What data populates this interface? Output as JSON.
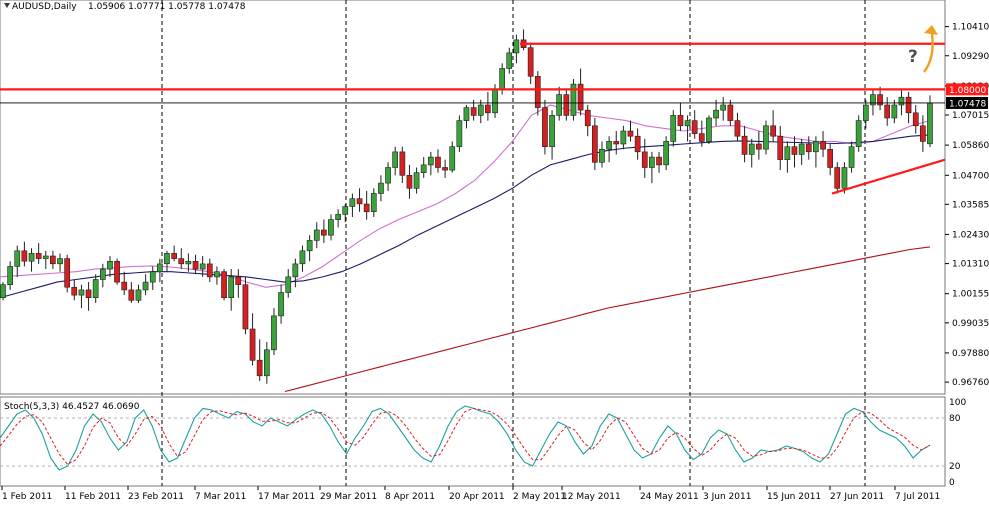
{
  "header": {
    "symbol": "AUDUSD,Daily",
    "ohlc": "1.05906 1.07771 1.05778 1.07478"
  },
  "stoch_header": "Stoch(5,3,3) 46.4527 46.0690",
  "annotation": {
    "question_mark": "?"
  },
  "colors": {
    "bull": "#3aa23a",
    "bear": "#d42020",
    "ma_fast": "#d070d0",
    "ma_mid": "#1a1a6a",
    "ma_slow": "#b01010",
    "stoch_main": "#20a0a0",
    "stoch_signal": "#e02020",
    "resistance": "#ff1a1a",
    "arrow": "#f0a020",
    "grid": "#000000",
    "frame": "#7a7a7a"
  },
  "chart_data": {
    "type": "candlestick",
    "instrument": "AUDUSD",
    "timeframe": "Daily",
    "price_axis": {
      "ylim": [
        0.9638,
        1.1097
      ],
      "ticks": [
        "1.10410",
        "1.09290",
        "1.08130",
        "1.07015",
        "1.05860",
        "1.04700",
        "1.03585",
        "1.02430",
        "1.01310",
        "1.00155",
        "0.99035",
        "0.97880",
        "0.96760"
      ],
      "tick_values": [
        1.1041,
        1.0929,
        1.0813,
        1.07015,
        1.0586,
        1.047,
        1.03585,
        1.0243,
        1.0131,
        1.00155,
        0.99035,
        0.9788,
        0.9676
      ]
    },
    "current_price_label": "1.07478",
    "resistance_label": "1.08000",
    "dates": [
      "1 Feb 2011",
      "11 Feb 2011",
      "23 Feb 2011",
      "7 Mar 2011",
      "17 Mar 2011",
      "29 Mar 2011",
      "8 Apr 2011",
      "20 Apr 2011",
      "2 May 2011",
      "12 May 2011",
      "24 May 2011",
      "3 Jun 2011",
      "15 Jun 2011",
      "27 Jun 2011",
      "7 Jul 2011"
    ],
    "candles": [
      {
        "o": 1.0,
        "h": 1.006,
        "l": 0.999,
        "c": 1.005
      },
      {
        "o": 1.005,
        "h": 1.014,
        "l": 1.003,
        "c": 1.012
      },
      {
        "o": 1.012,
        "h": 1.02,
        "l": 1.008,
        "c": 1.018
      },
      {
        "o": 1.018,
        "h": 1.0215,
        "l": 1.012,
        "c": 1.014
      },
      {
        "o": 1.014,
        "h": 1.019,
        "l": 1.01,
        "c": 1.017
      },
      {
        "o": 1.017,
        "h": 1.021,
        "l": 1.013,
        "c": 1.015
      },
      {
        "o": 1.015,
        "h": 1.018,
        "l": 1.011,
        "c": 1.016
      },
      {
        "o": 1.016,
        "h": 1.018,
        "l": 1.011,
        "c": 1.013
      },
      {
        "o": 1.013,
        "h": 1.017,
        "l": 1.01,
        "c": 1.015
      },
      {
        "o": 1.015,
        "h": 1.0165,
        "l": 1.002,
        "c": 1.004
      },
      {
        "o": 1.004,
        "h": 1.007,
        "l": 0.999,
        "c": 1.001
      },
      {
        "o": 1.001,
        "h": 1.005,
        "l": 0.996,
        "c": 1.003
      },
      {
        "o": 1.003,
        "h": 1.006,
        "l": 0.995,
        "c": 1.0
      },
      {
        "o": 1.0,
        "h": 1.009,
        "l": 0.998,
        "c": 1.007
      },
      {
        "o": 1.007,
        "h": 1.013,
        "l": 1.004,
        "c": 1.011
      },
      {
        "o": 1.011,
        "h": 1.016,
        "l": 1.008,
        "c": 1.014
      },
      {
        "o": 1.014,
        "h": 1.015,
        "l": 1.005,
        "c": 1.006
      },
      {
        "o": 1.006,
        "h": 1.01,
        "l": 1.001,
        "c": 1.003
      },
      {
        "o": 1.003,
        "h": 1.006,
        "l": 0.998,
        "c": 0.999
      },
      {
        "o": 0.999,
        "h": 1.005,
        "l": 0.998,
        "c": 1.003
      },
      {
        "o": 1.003,
        "h": 1.009,
        "l": 1.001,
        "c": 1.006
      },
      {
        "o": 1.006,
        "h": 1.012,
        "l": 1.003,
        "c": 1.01
      },
      {
        "o": 1.01,
        "h": 1.015,
        "l": 1.006,
        "c": 1.013
      },
      {
        "o": 1.013,
        "h": 1.018,
        "l": 1.01,
        "c": 1.017
      },
      {
        "o": 1.017,
        "h": 1.02,
        "l": 1.014,
        "c": 1.015
      },
      {
        "o": 1.015,
        "h": 1.019,
        "l": 1.011,
        "c": 1.013
      },
      {
        "o": 1.013,
        "h": 1.017,
        "l": 1.01,
        "c": 1.014
      },
      {
        "o": 1.014,
        "h": 1.0165,
        "l": 1.009,
        "c": 1.011
      },
      {
        "o": 1.011,
        "h": 1.016,
        "l": 1.008,
        "c": 1.013
      },
      {
        "o": 1.013,
        "h": 1.015,
        "l": 1.006,
        "c": 1.008
      },
      {
        "o": 1.008,
        "h": 1.012,
        "l": 1.005,
        "c": 1.01
      },
      {
        "o": 1.01,
        "h": 1.011,
        "l": 0.999,
        "c": 1.0
      },
      {
        "o": 1.0,
        "h": 1.011,
        "l": 0.995,
        "c": 1.008
      },
      {
        "o": 1.008,
        "h": 1.011,
        "l": 1.0,
        "c": 1.005
      },
      {
        "o": 1.005,
        "h": 1.008,
        "l": 0.986,
        "c": 0.988
      },
      {
        "o": 0.988,
        "h": 0.994,
        "l": 0.974,
        "c": 0.976
      },
      {
        "o": 0.976,
        "h": 0.984,
        "l": 0.968,
        "c": 0.97
      },
      {
        "o": 0.97,
        "h": 0.983,
        "l": 0.967,
        "c": 0.98
      },
      {
        "o": 0.98,
        "h": 0.996,
        "l": 0.978,
        "c": 0.993
      },
      {
        "o": 0.993,
        "h": 1.005,
        "l": 0.99,
        "c": 1.002
      },
      {
        "o": 1.002,
        "h": 1.011,
        "l": 1.0,
        "c": 1.008
      },
      {
        "o": 1.008,
        "h": 1.015,
        "l": 1.004,
        "c": 1.013
      },
      {
        "o": 1.013,
        "h": 1.02,
        "l": 1.01,
        "c": 1.018
      },
      {
        "o": 1.018,
        "h": 1.024,
        "l": 1.014,
        "c": 1.022
      },
      {
        "o": 1.022,
        "h": 1.029,
        "l": 1.019,
        "c": 1.026
      },
      {
        "o": 1.026,
        "h": 1.03,
        "l": 1.021,
        "c": 1.024
      },
      {
        "o": 1.024,
        "h": 1.032,
        "l": 1.022,
        "c": 1.03
      },
      {
        "o": 1.03,
        "h": 1.034,
        "l": 1.027,
        "c": 1.032
      },
      {
        "o": 1.032,
        "h": 1.036,
        "l": 1.029,
        "c": 1.035
      },
      {
        "o": 1.035,
        "h": 1.04,
        "l": 1.031,
        "c": 1.038
      },
      {
        "o": 1.038,
        "h": 1.042,
        "l": 1.033,
        "c": 1.036
      },
      {
        "o": 1.036,
        "h": 1.041,
        "l": 1.03,
        "c": 1.033
      },
      {
        "o": 1.033,
        "h": 1.042,
        "l": 1.031,
        "c": 1.04
      },
      {
        "o": 1.04,
        "h": 1.047,
        "l": 1.037,
        "c": 1.044
      },
      {
        "o": 1.044,
        "h": 1.052,
        "l": 1.041,
        "c": 1.05
      },
      {
        "o": 1.05,
        "h": 1.058,
        "l": 1.047,
        "c": 1.056
      },
      {
        "o": 1.056,
        "h": 1.058,
        "l": 1.044,
        "c": 1.047
      },
      {
        "o": 1.047,
        "h": 1.051,
        "l": 1.038,
        "c": 1.042
      },
      {
        "o": 1.042,
        "h": 1.05,
        "l": 1.04,
        "c": 1.048
      },
      {
        "o": 1.048,
        "h": 1.054,
        "l": 1.046,
        "c": 1.051
      },
      {
        "o": 1.051,
        "h": 1.056,
        "l": 1.047,
        "c": 1.054
      },
      {
        "o": 1.054,
        "h": 1.057,
        "l": 1.048,
        "c": 1.05
      },
      {
        "o": 1.05,
        "h": 1.053,
        "l": 1.046,
        "c": 1.049
      },
      {
        "o": 1.049,
        "h": 1.06,
        "l": 1.048,
        "c": 1.058
      },
      {
        "o": 1.058,
        "h": 1.07,
        "l": 1.056,
        "c": 1.068
      },
      {
        "o": 1.068,
        "h": 1.074,
        "l": 1.065,
        "c": 1.073
      },
      {
        "o": 1.073,
        "h": 1.076,
        "l": 1.068,
        "c": 1.07
      },
      {
        "o": 1.07,
        "h": 1.076,
        "l": 1.067,
        "c": 1.074
      },
      {
        "o": 1.074,
        "h": 1.079,
        "l": 1.068,
        "c": 1.071
      },
      {
        "o": 1.071,
        "h": 1.082,
        "l": 1.069,
        "c": 1.08
      },
      {
        "o": 1.08,
        "h": 1.09,
        "l": 1.078,
        "c": 1.088
      },
      {
        "o": 1.088,
        "h": 1.096,
        "l": 1.086,
        "c": 1.094
      },
      {
        "o": 1.094,
        "h": 1.101,
        "l": 1.09,
        "c": 1.099
      },
      {
        "o": 1.099,
        "h": 1.103,
        "l": 1.095,
        "c": 1.096
      },
      {
        "o": 1.096,
        "h": 1.098,
        "l": 1.082,
        "c": 1.085
      },
      {
        "o": 1.085,
        "h": 1.087,
        "l": 1.07,
        "c": 1.073
      },
      {
        "o": 1.073,
        "h": 1.076,
        "l": 1.055,
        "c": 1.058
      },
      {
        "o": 1.058,
        "h": 1.072,
        "l": 1.053,
        "c": 1.07
      },
      {
        "o": 1.07,
        "h": 1.081,
        "l": 1.068,
        "c": 1.078
      },
      {
        "o": 1.078,
        "h": 1.08,
        "l": 1.068,
        "c": 1.07
      },
      {
        "o": 1.07,
        "h": 1.084,
        "l": 1.068,
        "c": 1.082
      },
      {
        "o": 1.082,
        "h": 1.088,
        "l": 1.07,
        "c": 1.072
      },
      {
        "o": 1.072,
        "h": 1.074,
        "l": 1.062,
        "c": 1.066
      },
      {
        "o": 1.066,
        "h": 1.069,
        "l": 1.049,
        "c": 1.052
      },
      {
        "o": 1.052,
        "h": 1.06,
        "l": 1.05,
        "c": 1.057
      },
      {
        "o": 1.057,
        "h": 1.062,
        "l": 1.052,
        "c": 1.06
      },
      {
        "o": 1.06,
        "h": 1.064,
        "l": 1.055,
        "c": 1.059
      },
      {
        "o": 1.059,
        "h": 1.066,
        "l": 1.057,
        "c": 1.064
      },
      {
        "o": 1.064,
        "h": 1.068,
        "l": 1.06,
        "c": 1.062
      },
      {
        "o": 1.062,
        "h": 1.065,
        "l": 1.053,
        "c": 1.056
      },
      {
        "o": 1.056,
        "h": 1.061,
        "l": 1.046,
        "c": 1.05
      },
      {
        "o": 1.05,
        "h": 1.056,
        "l": 1.044,
        "c": 1.054
      },
      {
        "o": 1.054,
        "h": 1.056,
        "l": 1.048,
        "c": 1.051
      },
      {
        "o": 1.051,
        "h": 1.062,
        "l": 1.049,
        "c": 1.06
      },
      {
        "o": 1.06,
        "h": 1.072,
        "l": 1.058,
        "c": 1.07
      },
      {
        "o": 1.07,
        "h": 1.075,
        "l": 1.064,
        "c": 1.066
      },
      {
        "o": 1.066,
        "h": 1.07,
        "l": 1.06,
        "c": 1.068
      },
      {
        "o": 1.068,
        "h": 1.072,
        "l": 1.061,
        "c": 1.063
      },
      {
        "o": 1.063,
        "h": 1.068,
        "l": 1.058,
        "c": 1.06
      },
      {
        "o": 1.06,
        "h": 1.07,
        "l": 1.059,
        "c": 1.069
      },
      {
        "o": 1.069,
        "h": 1.076,
        "l": 1.066,
        "c": 1.072
      },
      {
        "o": 1.072,
        "h": 1.077,
        "l": 1.068,
        "c": 1.074
      },
      {
        "o": 1.074,
        "h": 1.076,
        "l": 1.066,
        "c": 1.068
      },
      {
        "o": 1.068,
        "h": 1.071,
        "l": 1.06,
        "c": 1.062
      },
      {
        "o": 1.062,
        "h": 1.066,
        "l": 1.052,
        "c": 1.055
      },
      {
        "o": 1.055,
        "h": 1.061,
        "l": 1.05,
        "c": 1.059
      },
      {
        "o": 1.059,
        "h": 1.064,
        "l": 1.053,
        "c": 1.057
      },
      {
        "o": 1.057,
        "h": 1.068,
        "l": 1.055,
        "c": 1.066
      },
      {
        "o": 1.066,
        "h": 1.072,
        "l": 1.06,
        "c": 1.062
      },
      {
        "o": 1.062,
        "h": 1.066,
        "l": 1.049,
        "c": 1.053
      },
      {
        "o": 1.053,
        "h": 1.06,
        "l": 1.048,
        "c": 1.058
      },
      {
        "o": 1.058,
        "h": 1.062,
        "l": 1.05,
        "c": 1.055
      },
      {
        "o": 1.055,
        "h": 1.061,
        "l": 1.051,
        "c": 1.059
      },
      {
        "o": 1.059,
        "h": 1.062,
        "l": 1.053,
        "c": 1.056
      },
      {
        "o": 1.056,
        "h": 1.062,
        "l": 1.05,
        "c": 1.06
      },
      {
        "o": 1.06,
        "h": 1.064,
        "l": 1.054,
        "c": 1.057
      },
      {
        "o": 1.057,
        "h": 1.059,
        "l": 1.047,
        "c": 1.05
      },
      {
        "o": 1.05,
        "h": 1.052,
        "l": 1.04,
        "c": 1.042
      },
      {
        "o": 1.042,
        "h": 1.052,
        "l": 1.04,
        "c": 1.05
      },
      {
        "o": 1.05,
        "h": 1.06,
        "l": 1.048,
        "c": 1.058
      },
      {
        "o": 1.058,
        "h": 1.07,
        "l": 1.056,
        "c": 1.068
      },
      {
        "o": 1.068,
        "h": 1.076,
        "l": 1.065,
        "c": 1.074
      },
      {
        "o": 1.074,
        "h": 1.08,
        "l": 1.07,
        "c": 1.078
      },
      {
        "o": 1.078,
        "h": 1.081,
        "l": 1.072,
        "c": 1.074
      },
      {
        "o": 1.074,
        "h": 1.077,
        "l": 1.066,
        "c": 1.069
      },
      {
        "o": 1.069,
        "h": 1.076,
        "l": 1.067,
        "c": 1.074
      },
      {
        "o": 1.074,
        "h": 1.08,
        "l": 1.07,
        "c": 1.077
      },
      {
        "o": 1.077,
        "h": 1.079,
        "l": 1.067,
        "c": 1.071
      },
      {
        "o": 1.071,
        "h": 1.074,
        "l": 1.063,
        "c": 1.066
      },
      {
        "o": 1.066,
        "h": 1.07,
        "l": 1.056,
        "c": 1.06
      },
      {
        "o": 1.0591,
        "h": 1.0777,
        "l": 1.0578,
        "c": 1.0748
      }
    ],
    "moving_averages": [
      {
        "period_note": "fast",
        "values": [
          1.008,
          1.0085,
          1.009,
          1.0095,
          1.01,
          1.011,
          1.0115,
          1.012,
          1.0122,
          1.0118,
          1.011,
          1.01,
          1.0085,
          1.006,
          1.004,
          1.005,
          1.008,
          1.012,
          1.017,
          1.022,
          1.0265,
          1.03,
          1.033,
          1.036,
          1.04,
          1.045,
          1.052,
          1.06,
          1.07,
          1.074,
          1.072,
          1.07,
          1.069,
          1.068,
          1.066,
          1.065,
          1.064,
          1.065,
          1.066,
          1.066,
          1.064,
          1.062,
          1.061,
          1.06,
          1.06,
          1.059,
          1.06,
          1.063,
          1.066,
          1.068
        ]
      },
      {
        "period_note": "mid",
        "values": [
          1.0,
          1.002,
          1.004,
          1.006,
          1.007,
          1.008,
          1.009,
          1.0095,
          1.01,
          1.01,
          1.0095,
          1.009,
          1.0085,
          1.008,
          1.007,
          1.006,
          1.0065,
          1.008,
          1.01,
          1.013,
          1.0165,
          1.02,
          1.024,
          1.0275,
          1.031,
          1.0345,
          1.038,
          1.042,
          1.047,
          1.051,
          1.053,
          1.055,
          1.0565,
          1.0575,
          1.058,
          1.0585,
          1.059,
          1.0595,
          1.06,
          1.0602,
          1.06,
          1.0598,
          1.0596,
          1.0594,
          1.0592,
          1.0595,
          1.06,
          1.061,
          1.062,
          1.0625
        ]
      },
      {
        "period_note": "slow",
        "values": [
          0.964,
          0.966,
          0.968,
          0.97,
          0.972,
          0.974,
          0.976,
          0.978,
          0.98,
          0.982,
          0.984,
          0.986,
          0.988,
          0.99,
          0.992,
          0.994,
          0.996,
          0.9975,
          0.999,
          1.0005,
          1.002,
          1.0035,
          1.005,
          1.0065,
          1.008,
          1.0095,
          1.011,
          1.0125,
          1.014,
          1.0155,
          1.017,
          1.0185,
          1.0195
        ]
      }
    ],
    "horizontal_lines": [
      {
        "label": "1.08000",
        "value": 1.08
      },
      {
        "value": 1.0975
      },
      {
        "label": "1.07478",
        "value": 1.07478
      }
    ],
    "trendline": {
      "from": 1.04,
      "to": 1.053
    },
    "stochastic": {
      "params": "Stoch(5,3,3)",
      "main": 46.4527,
      "signal": 46.069,
      "ylim": [
        0,
        100
      ],
      "levels": [
        "100",
        "80",
        "20",
        "0"
      ],
      "level_values": [
        100,
        80,
        20,
        0
      ],
      "main_series": [
        55,
        70,
        85,
        90,
        80,
        60,
        30,
        15,
        20,
        40,
        70,
        85,
        75,
        55,
        40,
        50,
        80,
        90,
        70,
        40,
        25,
        30,
        55,
        80,
        92,
        90,
        85,
        80,
        88,
        85,
        75,
        70,
        80,
        75,
        70,
        78,
        85,
        90,
        85,
        70,
        50,
        35,
        55,
        70,
        88,
        92,
        85,
        70,
        55,
        40,
        30,
        25,
        45,
        70,
        88,
        95,
        92,
        88,
        85,
        75,
        60,
        40,
        25,
        20,
        40,
        60,
        75,
        70,
        50,
        35,
        45,
        70,
        85,
        80,
        60,
        40,
        30,
        35,
        55,
        70,
        60,
        40,
        28,
        35,
        55,
        65,
        60,
        40,
        25,
        30,
        40,
        38,
        40,
        45,
        42,
        38,
        30,
        25,
        35,
        60,
        85,
        92,
        88,
        75,
        65,
        60,
        55,
        45,
        30,
        40,
        46
      ],
      "signal_series": [
        45,
        58,
        72,
        82,
        84,
        75,
        55,
        35,
        22,
        28,
        45,
        68,
        80,
        74,
        55,
        45,
        60,
        78,
        82,
        70,
        48,
        32,
        38,
        58,
        78,
        88,
        89,
        86,
        84,
        86,
        82,
        76,
        76,
        78,
        74,
        74,
        80,
        86,
        87,
        80,
        66,
        50,
        46,
        56,
        72,
        86,
        88,
        82,
        70,
        55,
        42,
        32,
        34,
        52,
        72,
        88,
        92,
        90,
        88,
        82,
        72,
        58,
        42,
        28,
        28,
        42,
        58,
        70,
        65,
        50,
        40,
        52,
        70,
        80,
        75,
        58,
        42,
        35,
        40,
        55,
        62,
        55,
        42,
        33,
        40,
        52,
        60,
        55,
        40,
        32,
        34,
        38,
        39,
        42,
        42,
        40,
        35,
        30,
        30,
        42,
        62,
        80,
        88,
        86,
        78,
        68,
        62,
        56,
        46,
        40,
        46
      ]
    }
  }
}
